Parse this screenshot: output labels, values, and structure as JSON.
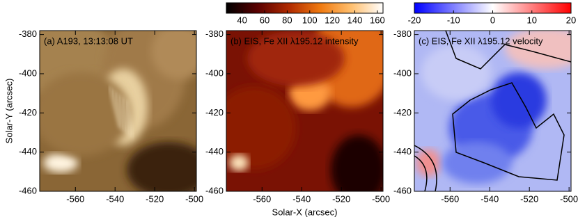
{
  "chart_data": [
    {
      "type": "image",
      "title": "(a) A193, 13:13:08 UT",
      "title_color": "#ffffff",
      "ylabel": "Solar-Y (arcsec)",
      "xlim": [
        -578,
        -499
      ],
      "ylim": [
        -460,
        -378
      ],
      "xticks": [
        -560,
        -540,
        -520,
        -500
      ],
      "yticks": [
        -460,
        -440,
        -420,
        -400,
        -380
      ]
    },
    {
      "type": "image",
      "title": "(b) EIS, Fe XII λ195.12 intensity",
      "title_color": "#ffffff",
      "xlabel": "Solar-X (arcsec)",
      "xlim": [
        -578,
        -499
      ],
      "ylim": [
        -460,
        -378
      ],
      "xticks": [
        -560,
        -540,
        -520,
        -500
      ],
      "yticks": [
        -460,
        -440,
        -420,
        -400,
        -380
      ],
      "colorbar": {
        "lim": [
          26,
          165
        ],
        "ticks": [
          40,
          60,
          80,
          100,
          120,
          140,
          160
        ],
        "colors": [
          "#000000",
          "#5a0000",
          "#b02a00",
          "#f07a10",
          "#ffc070",
          "#ffffff"
        ]
      }
    },
    {
      "type": "image",
      "title": "(c) EIS, Fe XII λ195.12 velocity",
      "title_color": "#000000",
      "xlim": [
        -578,
        -499
      ],
      "ylim": [
        -460,
        -378
      ],
      "xticks": [
        -560,
        -540,
        -520,
        -500
      ],
      "yticks": [
        -460,
        -440,
        -420,
        -400,
        -380
      ],
      "colorbar": {
        "lim": [
          -20,
          20
        ],
        "ticks": [
          -20,
          -10,
          0,
          10,
          20
        ],
        "colors": [
          "#0000ff",
          "#ffffff",
          "#ff0000"
        ]
      }
    }
  ]
}
